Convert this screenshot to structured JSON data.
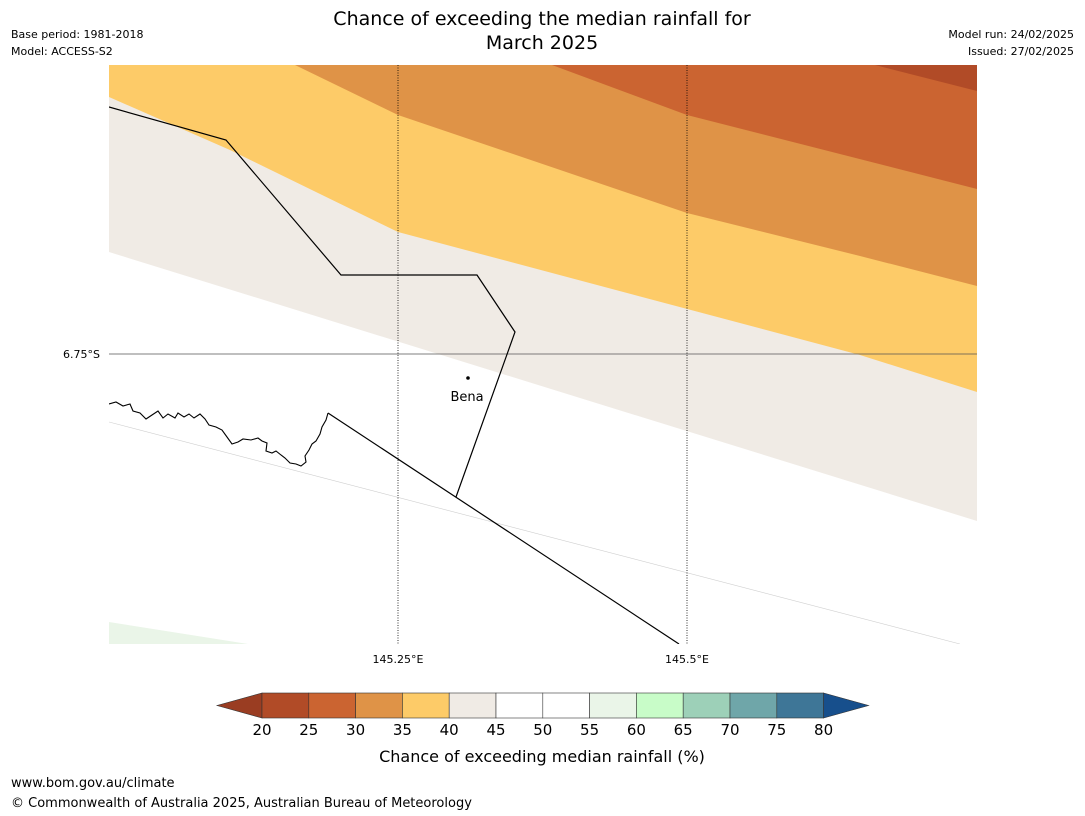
{
  "title_line1": "Chance of exceeding the median rainfall for",
  "title_line2": "March 2025",
  "base_period": "Base period: 1981-2018",
  "model": "Model: ACCESS-S2",
  "model_run": "Model run: 24/02/2025",
  "issued": "Issued: 27/02/2025",
  "map": {
    "lat_label": "6.75°S",
    "lon_labels": [
      "145.25°E",
      "145.5°E"
    ],
    "place_label": "Bena"
  },
  "colorbar": {
    "ticks": [
      "20",
      "25",
      "30",
      "35",
      "40",
      "45",
      "50",
      "55",
      "60",
      "65",
      "70",
      "75",
      "80"
    ],
    "colors": [
      "#9a3d22",
      "#b14b27",
      "#cb6431",
      "#df9347",
      "#fdcb68",
      "#f0ebe5",
      "#ffffff",
      "#ffffff",
      "#eaf5e8",
      "#c8fcc8",
      "#9dd0b8",
      "#6fa6a9",
      "#3e7697",
      "#174f8c"
    ],
    "label": "Chance of exceeding median rainfall (%)"
  },
  "footer_url": "www.bom.gov.au/climate",
  "footer_copy": "© Commonwealth of Australia 2025, Australian Bureau of Meteorology"
}
